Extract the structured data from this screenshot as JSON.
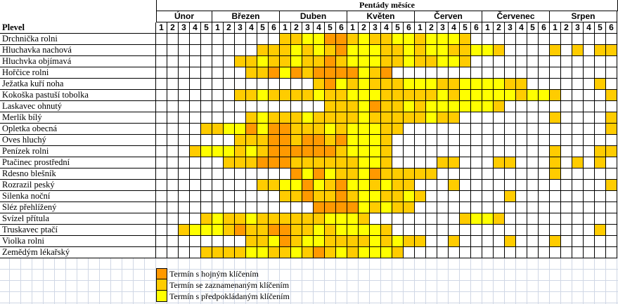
{
  "header": {
    "title": "Pentády měsíce",
    "row_label": "Plevel",
    "months": [
      {
        "name": "Únor",
        "pentads": 5
      },
      {
        "name": "Březen",
        "pentads": 6
      },
      {
        "name": "Duben",
        "pentads": 6
      },
      {
        "name": "Květen",
        "pentads": 6
      },
      {
        "name": "Červen",
        "pentads": 6
      },
      {
        "name": "Červenec",
        "pentads": 6
      },
      {
        "name": "Srpen",
        "pentads": 6
      }
    ]
  },
  "colors": {
    "O": "#FF9900",
    "G": "#FFCC00",
    "Y": "#FFFF00",
    ".": "#FFFFFF"
  },
  "rows": [
    {
      "name": "Drchnička rolni",
      "pattern": "...........GGYYOOGYGGYYGYYYG............."
    },
    {
      "name": "Hluchavka nachová",
      "pattern": ".........GGGYGYGOYYYGGYGYYGGYYG....G.G.GG"
    },
    {
      "name": "Hluchvka objímavá",
      "pattern": ".......GGYGGYGGOGYYYGGYGGYYG............."
    },
    {
      "name": "Hořčice rolni",
      "pattern": "........GGOYOGOOOOYGO...................."
    },
    {
      "name": "Ježatka kuří noha",
      "pattern": "..............GOYGYGGGYYYGGYYYYGG......G."
    },
    {
      "name": "Kokoška pastuší tobolka",
      "pattern": ".......GGYGGGGYGGYYYGGGGGYGYYYYYGYYG....G"
    },
    {
      "name": "Laskavec ohnutý",
      "pattern": "...............GGGYOGGYGYYYYYYG.........."
    },
    {
      "name": "Merlík bílý",
      "pattern": "........GYGGGYGGGGYGGGGGYGG........G....G"
    },
    {
      "name": "Opletka obecná",
      "pattern": "....GGYYOYOOGGGYGYYYGG..................G"
    },
    {
      "name": "Oves hluchý",
      "pattern": ".......GGGOOGOOGOYYYG...................."
    },
    {
      "name": "Penízek rolni",
      "pattern": "...GYYYGYGOOOOOOGYYYG..............G...GG"
    },
    {
      "name": "Ptačinec prostřední",
      "pattern": "......GGGOOOGGGGGGYYG....GG...GG...G.G.G."
    },
    {
      "name": "Rdesno blešník",
      "pattern": "............OYOYGGYOGGGGG..........G....."
    },
    {
      "name": "Rozrazil peský",
      "pattern": ".........GGYYOYGOYYGYGG...G.............G"
    },
    {
      "name": "Silenka noční",
      "pattern": "...........GGOGGOGYYGGYG.......G........."
    },
    {
      "name": "Sléz přehlížený",
      "pattern": "..............OOOOYGYGG.................."
    },
    {
      "name": "Svízel přítula",
      "pattern": "....GYGGYGGGGGGYYYG........GYYG.........."
    },
    {
      "name": "Truskavec ptačí",
      "pattern": "..GYYYGOGGOOGGYGYYYYG..................G."
    },
    {
      "name": "Violka rolni",
      "pattern": "........GGYOGYYGGGGYGYGG..G....G...G....."
    },
    {
      "name": "Zemědým lékařský",
      "pattern": "....GGGGYYGGYGOGYGYYYG..................."
    }
  ],
  "legend": [
    {
      "code": "O",
      "label": "Termín s hojným klíčením"
    },
    {
      "code": "G",
      "label": "Termín se zaznamenaným klíčením"
    },
    {
      "code": "Y",
      "label": "Termín s předpokládaným klíčením"
    }
  ]
}
